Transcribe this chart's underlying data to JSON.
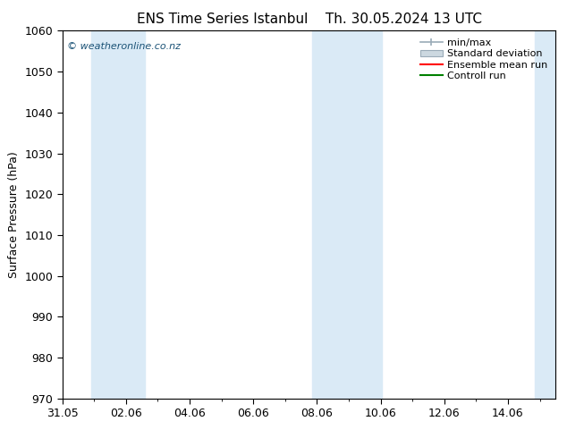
{
  "title_left": "ENS Time Series Istanbul",
  "title_right": "Th. 30.05.2024 13 UTC",
  "ylabel": "Surface Pressure (hPa)",
  "ylim": [
    970,
    1060
  ],
  "yticks": [
    970,
    980,
    990,
    1000,
    1010,
    1020,
    1030,
    1040,
    1050,
    1060
  ],
  "xtick_labels": [
    "31.05",
    "02.06",
    "04.06",
    "06.06",
    "08.06",
    "10.06",
    "12.06",
    "14.06"
  ],
  "xtick_positions": [
    0,
    2,
    4,
    6,
    8,
    10,
    12,
    14
  ],
  "xlim": [
    0,
    15.5
  ],
  "shaded_pairs": [
    [
      [
        0.8,
        1.5
      ],
      [
        1.5,
        2.8
      ]
    ],
    [
      [
        7.8,
        8.5
      ],
      [
        8.5,
        10.0
      ]
    ],
    [
      [
        14.8,
        15.5
      ],
      [
        15.5,
        15.5
      ]
    ]
  ],
  "shade_color_outer": "#ccdff0",
  "shade_color_inner": "#daeaf6",
  "background_color": "#ffffff",
  "watermark": "© weatheronline.co.nz",
  "legend_labels": [
    "min/max",
    "Standard deviation",
    "Ensemble mean run",
    "Controll run"
  ],
  "legend_line_colors": [
    "#a0b0c0",
    "#c0d0dc"
  ],
  "legend_red": "#ff0000",
  "legend_green": "#008000",
  "title_fontsize": 11,
  "tick_fontsize": 9,
  "ylabel_fontsize": 9,
  "watermark_color": "#1a5276"
}
